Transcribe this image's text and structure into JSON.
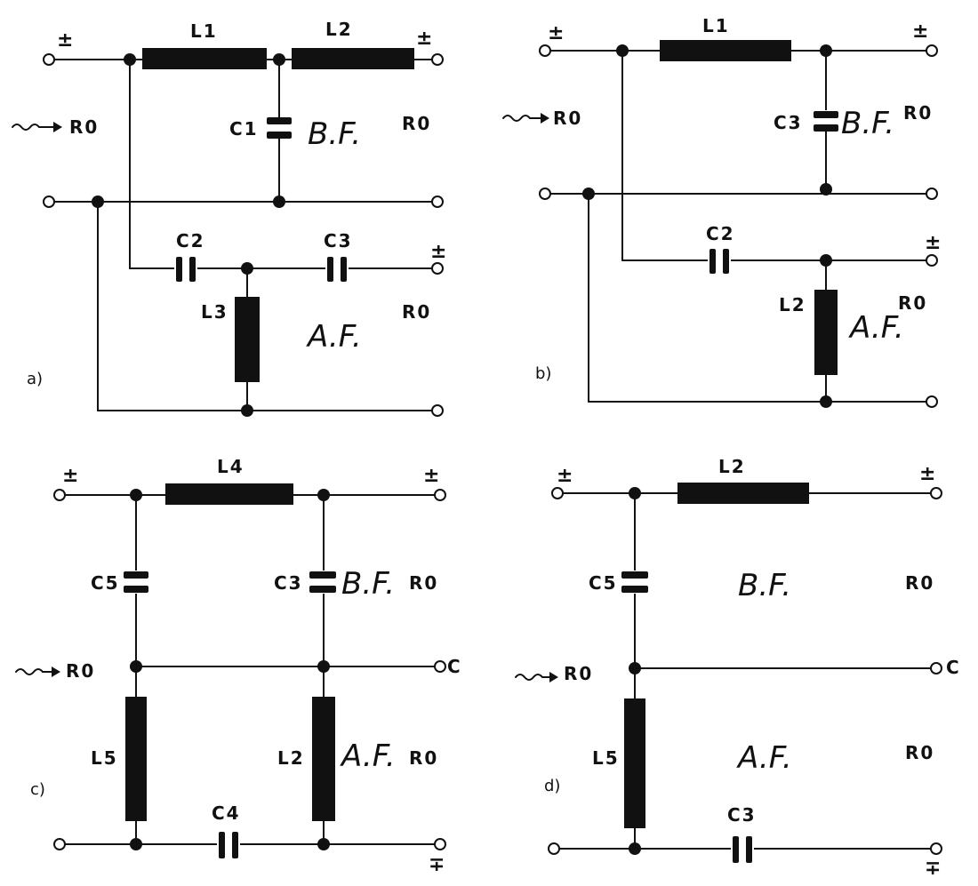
{
  "symbols": {
    "pm": "±",
    "mp": "∓",
    "arrow": "⤳"
  },
  "panel_a": {
    "label": "a)",
    "input_r": "R0",
    "out_bf_r": "R0",
    "out_af_r": "R0",
    "L1": "L1",
    "L2": "L2",
    "L3": "L3",
    "C1": "C1",
    "C2": "C2",
    "C3": "C3",
    "bf": "B.F.",
    "af": "A.F."
  },
  "panel_b": {
    "label": "b)",
    "input_r": "R0",
    "out_bf_r": "R0",
    "out_af_r": "R0",
    "L1": "L1",
    "L2": "L2",
    "C2": "C2",
    "C3": "C3",
    "bf": "B.F.",
    "af": "A.F."
  },
  "panel_c": {
    "label": "c)",
    "input_r": "R0",
    "out_bf_r": "R0",
    "out_af_r": "R0",
    "common": "C",
    "L2": "L2",
    "L4": "L4",
    "L5": "L5",
    "C3": "C3",
    "C4": "C4",
    "C5": "C5",
    "bf": "B.F.",
    "af": "A.F."
  },
  "panel_d": {
    "label": "d)",
    "input_r": "R0",
    "out_bf_r": "R0",
    "out_af_r": "R0",
    "common": "C",
    "L2": "L2",
    "L5": "L5",
    "C3": "C3",
    "C5": "C5",
    "bf": "B.F.",
    "af": "A.F."
  }
}
